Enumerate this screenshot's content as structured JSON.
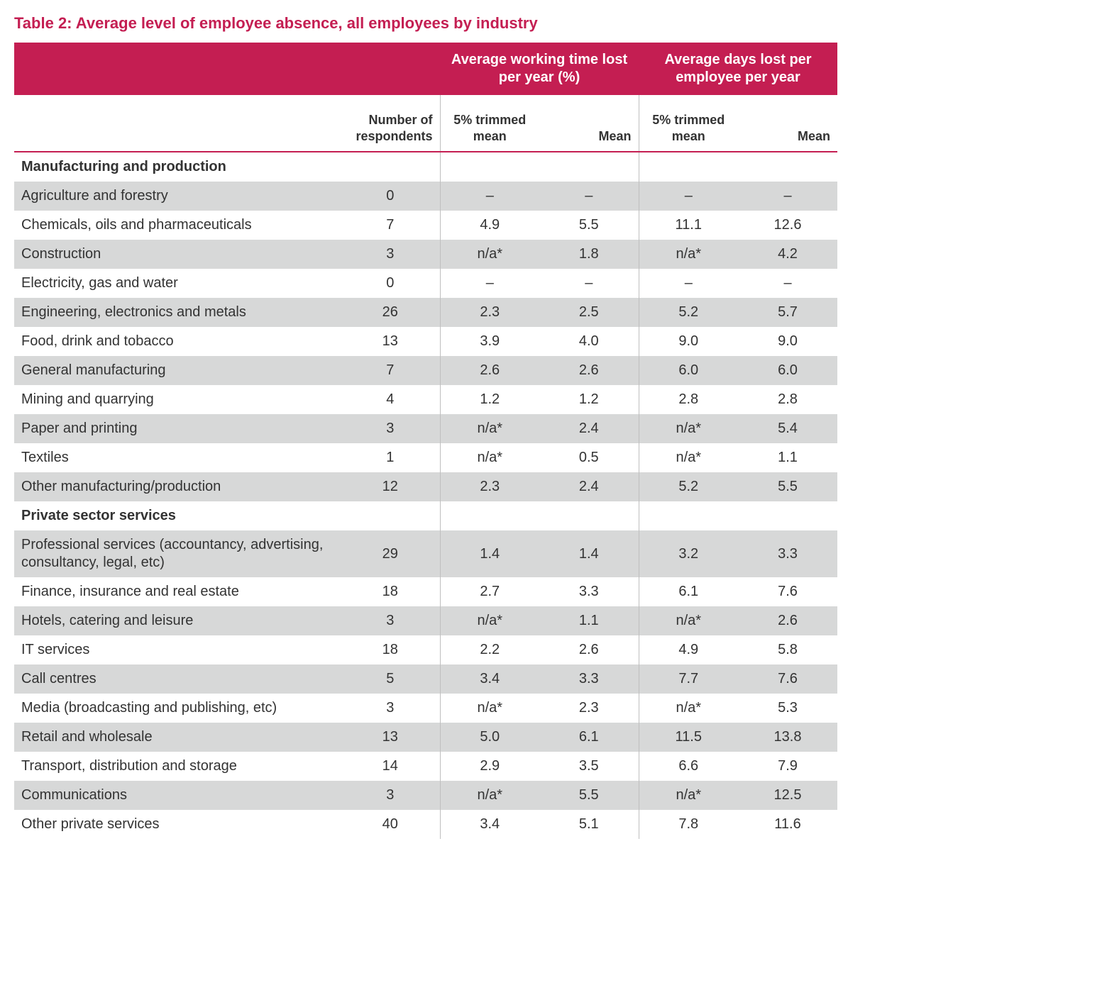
{
  "title": "Table 2: Average level of employee absence, all employees by industry",
  "colors": {
    "accent": "#c41e52",
    "shade": "#d7d8d8",
    "text": "#333333",
    "rule": "#c41e52",
    "groupBorder": "#bfbfbf"
  },
  "fonts": {
    "title_pt": 17,
    "header_pt": 15,
    "subhead_pt": 14,
    "body_pt": 15
  },
  "columns": {
    "respondents": "Number of respondents",
    "group1": {
      "title": "Average working time lost per year (%)",
      "sub": [
        "5% trimmed mean",
        "Mean"
      ]
    },
    "group2": {
      "title": "Average days lost per employee per year",
      "sub": [
        "5% trimmed mean",
        "Mean"
      ]
    }
  },
  "sections": [
    {
      "title": "Manufacturing and production",
      "rows": [
        {
          "label": "Agriculture and forestry",
          "resp": "0",
          "g1a": "–",
          "g1b": "–",
          "g2a": "–",
          "g2b": "–",
          "shaded": true
        },
        {
          "label": "Chemicals, oils and pharmaceuticals",
          "resp": "7",
          "g1a": "4.9",
          "g1b": "5.5",
          "g2a": "11.1",
          "g2b": "12.6",
          "shaded": false
        },
        {
          "label": "Construction",
          "resp": "3",
          "g1a": "n/a*",
          "g1b": "1.8",
          "g2a": "n/a*",
          "g2b": "4.2",
          "shaded": true
        },
        {
          "label": "Electricity, gas and water",
          "resp": "0",
          "g1a": "–",
          "g1b": "–",
          "g2a": "–",
          "g2b": "–",
          "shaded": false
        },
        {
          "label": "Engineering, electronics and metals",
          "resp": "26",
          "g1a": "2.3",
          "g1b": "2.5",
          "g2a": "5.2",
          "g2b": "5.7",
          "shaded": true
        },
        {
          "label": "Food, drink and tobacco",
          "resp": "13",
          "g1a": "3.9",
          "g1b": "4.0",
          "g2a": "9.0",
          "g2b": "9.0",
          "shaded": false
        },
        {
          "label": "General manufacturing",
          "resp": "7",
          "g1a": "2.6",
          "g1b": "2.6",
          "g2a": "6.0",
          "g2b": "6.0",
          "shaded": true
        },
        {
          "label": "Mining and quarrying",
          "resp": "4",
          "g1a": "1.2",
          "g1b": "1.2",
          "g2a": "2.8",
          "g2b": "2.8",
          "shaded": false
        },
        {
          "label": "Paper and printing",
          "resp": "3",
          "g1a": "n/a*",
          "g1b": "2.4",
          "g2a": "n/a*",
          "g2b": "5.4",
          "shaded": true
        },
        {
          "label": "Textiles",
          "resp": "1",
          "g1a": "n/a*",
          "g1b": "0.5",
          "g2a": "n/a*",
          "g2b": "1.1",
          "shaded": false
        },
        {
          "label": "Other manufacturing/production",
          "resp": "12",
          "g1a": "2.3",
          "g1b": "2.4",
          "g2a": "5.2",
          "g2b": "5.5",
          "shaded": true
        }
      ]
    },
    {
      "title": "Private sector services",
      "rows": [
        {
          "label": "Professional services (accountancy, advertising, consultancy, legal, etc)",
          "resp": "29",
          "g1a": "1.4",
          "g1b": "1.4",
          "g2a": "3.2",
          "g2b": "3.3",
          "shaded": true
        },
        {
          "label": "Finance, insurance and real estate",
          "resp": "18",
          "g1a": "2.7",
          "g1b": "3.3",
          "g2a": "6.1",
          "g2b": "7.6",
          "shaded": false
        },
        {
          "label": "Hotels, catering and leisure",
          "resp": "3",
          "g1a": "n/a*",
          "g1b": "1.1",
          "g2a": "n/a*",
          "g2b": "2.6",
          "shaded": true
        },
        {
          "label": "IT services",
          "resp": "18",
          "g1a": "2.2",
          "g1b": "2.6",
          "g2a": "4.9",
          "g2b": "5.8",
          "shaded": false
        },
        {
          "label": "Call centres",
          "resp": "5",
          "g1a": "3.4",
          "g1b": "3.3",
          "g2a": "7.7",
          "g2b": "7.6",
          "shaded": true
        },
        {
          "label": "Media (broadcasting and publishing, etc)",
          "resp": "3",
          "g1a": "n/a*",
          "g1b": "2.3",
          "g2a": "n/a*",
          "g2b": "5.3",
          "shaded": false
        },
        {
          "label": "Retail and wholesale",
          "resp": "13",
          "g1a": "5.0",
          "g1b": "6.1",
          "g2a": "11.5",
          "g2b": "13.8",
          "shaded": true
        },
        {
          "label": "Transport, distribution and storage",
          "resp": "14",
          "g1a": "2.9",
          "g1b": "3.5",
          "g2a": "6.6",
          "g2b": "7.9",
          "shaded": false
        },
        {
          "label": "Communications",
          "resp": "3",
          "g1a": "n/a*",
          "g1b": "5.5",
          "g2a": "n/a*",
          "g2b": "12.5",
          "shaded": true
        },
        {
          "label": "Other private services",
          "resp": "40",
          "g1a": "3.4",
          "g1b": "5.1",
          "g2a": "7.8",
          "g2b": "11.6",
          "shaded": false
        }
      ]
    }
  ]
}
